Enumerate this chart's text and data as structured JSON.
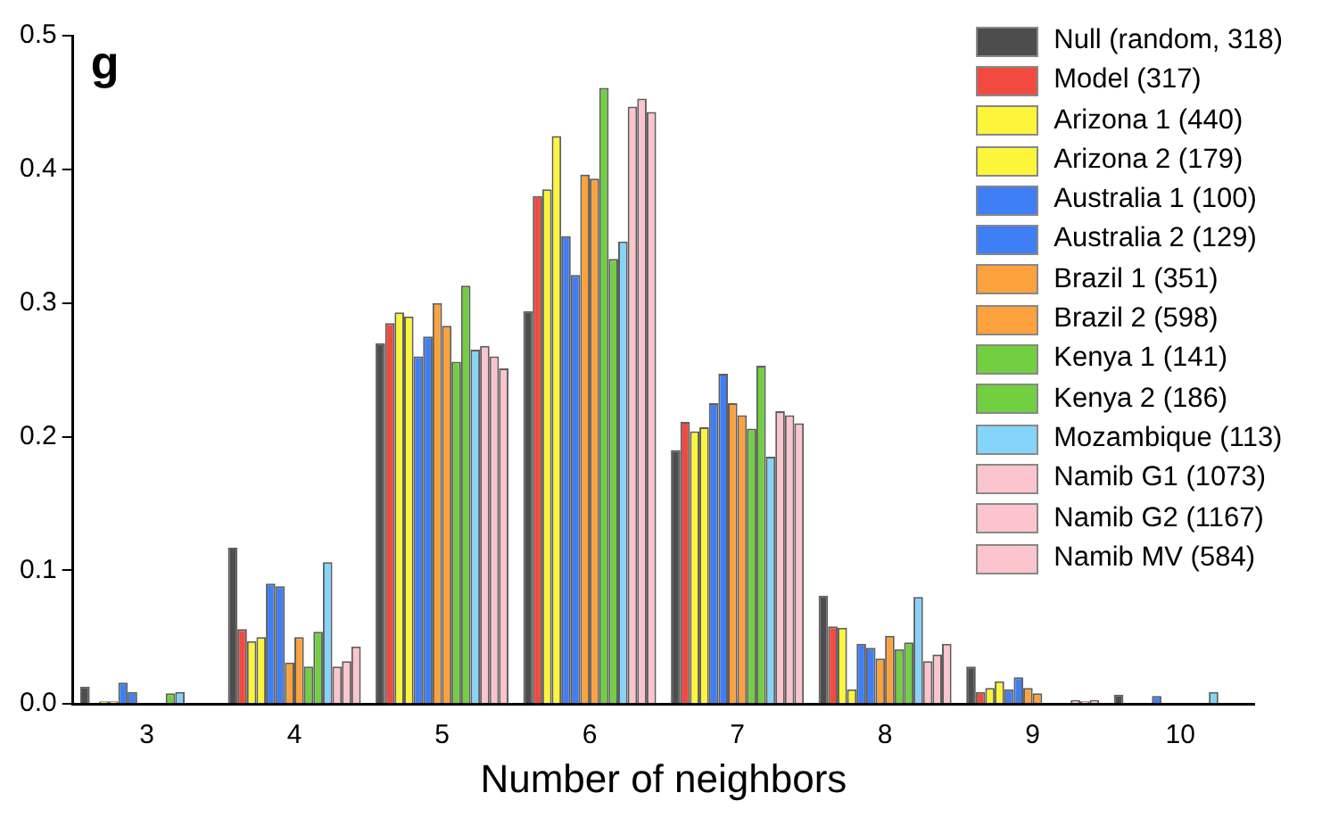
{
  "chart_data": {
    "type": "bar",
    "xlabel": "Number of neighbors",
    "categories": [
      "3",
      "4",
      "5",
      "6",
      "7",
      "8",
      "9",
      "10"
    ],
    "ylim": [
      0,
      0.5
    ],
    "yticks": [
      {
        "value": 0,
        "label": "0.0"
      },
      0.1,
      0.2,
      0.3,
      0.4,
      0.5
    ],
    "legend": "top right",
    "grid": false,
    "annotations": [
      "g"
    ],
    "series": [
      {
        "name": "Null (random, 318)",
        "color": "#4d4d4d",
        "values": [
          0.013,
          0.117,
          0.27,
          0.294,
          0.19,
          0.081,
          0.028,
          0.007
        ]
      },
      {
        "name": "Model (317)",
        "color": "#f24a40",
        "values": [
          0,
          0.056,
          0.285,
          0.38,
          0.211,
          0.058,
          0.009,
          0
        ]
      },
      {
        "name": "Arizona 1 (440)",
        "color": "#fdf53a",
        "values": [
          0.002,
          0.047,
          0.293,
          0.385,
          0.204,
          0.057,
          0.012,
          0
        ]
      },
      {
        "name": "Arizona 2 (179)",
        "color": "#fdf53a",
        "values": [
          0.002,
          0.05,
          0.29,
          0.425,
          0.207,
          0.011,
          0.017,
          0
        ]
      },
      {
        "name": "Australia 1 (100)",
        "color": "#3f7ff5",
        "values": [
          0.016,
          0.09,
          0.26,
          0.35,
          0.225,
          0.045,
          0.011,
          0.006
        ]
      },
      {
        "name": "Australia 2 (129)",
        "color": "#3f7ff5",
        "values": [
          0.009,
          0.088,
          0.275,
          0.321,
          0.247,
          0.042,
          0.02,
          0
        ]
      },
      {
        "name": "Brazil 1 (351)",
        "color": "#fba23c",
        "values": [
          0,
          0.031,
          0.3,
          0.396,
          0.225,
          0.034,
          0.012,
          0
        ]
      },
      {
        "name": "Brazil 2 (598)",
        "color": "#fba23c",
        "values": [
          0,
          0.05,
          0.283,
          0.393,
          0.216,
          0.051,
          0.008,
          0
        ]
      },
      {
        "name": "Kenya 1 (141)",
        "color": "#72cf42",
        "values": [
          0,
          0.028,
          0.256,
          0.461,
          0.206,
          0.041,
          0,
          0
        ]
      },
      {
        "name": "Kenya 2 (186)",
        "color": "#72cf42",
        "values": [
          0.008,
          0.054,
          0.313,
          0.333,
          0.253,
          0.046,
          0,
          0
        ]
      },
      {
        "name": "Mozambique (113)",
        "color": "#85d4f9",
        "values": [
          0.009,
          0.106,
          0.265,
          0.346,
          0.185,
          0.08,
          0,
          0.009
        ]
      },
      {
        "name": "Namib G1 (1073)",
        "color": "#fcc4cc",
        "values": [
          0,
          0.028,
          0.268,
          0.447,
          0.219,
          0.032,
          0.003,
          0
        ]
      },
      {
        "name": "Namib G2 (1167)",
        "color": "#fcc4cc",
        "values": [
          0,
          0.032,
          0.26,
          0.453,
          0.216,
          0.037,
          0.002,
          0
        ]
      },
      {
        "name": "Namib MV (584)",
        "color": "#fcc4cc",
        "values": [
          0,
          0.043,
          0.251,
          0.443,
          0.21,
          0.045,
          0.003,
          0
        ]
      }
    ]
  }
}
